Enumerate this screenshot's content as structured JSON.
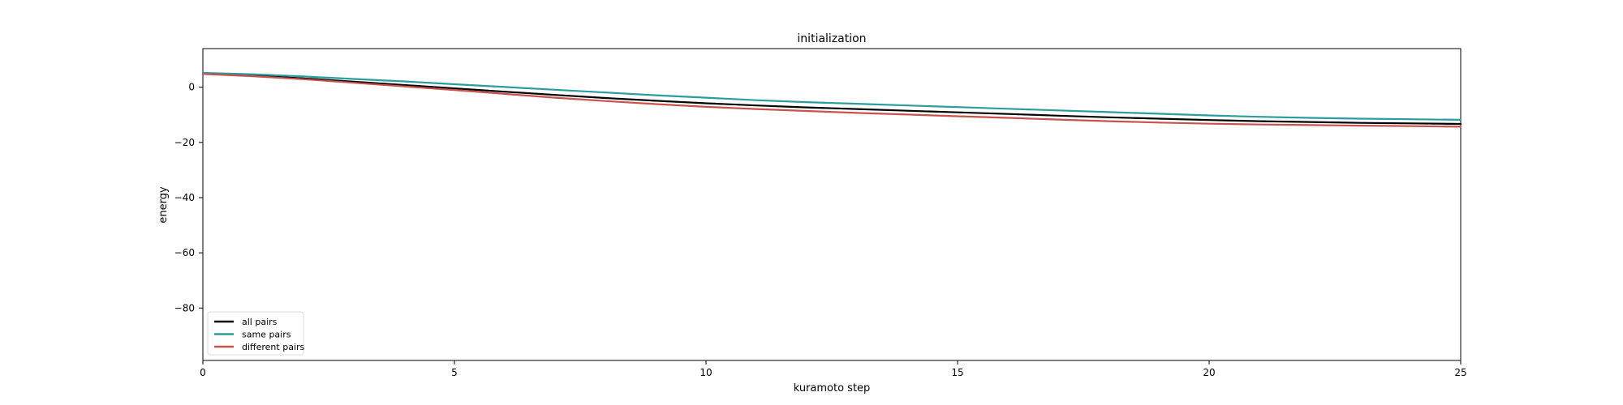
{
  "chart_data": {
    "type": "line",
    "title": "initialization",
    "xlabel": "kuramoto step",
    "ylabel": "energy",
    "xlim": [
      0,
      25
    ],
    "ylim": [
      -99,
      14
    ],
    "xticks": [
      0,
      5,
      10,
      15,
      20,
      25
    ],
    "yticks": [
      0,
      -20,
      -40,
      -60,
      -80
    ],
    "grid": false,
    "legend_position": "lower-left",
    "x": [
      0,
      1,
      2,
      3,
      4,
      5,
      6,
      7,
      8,
      9,
      10,
      11,
      12,
      13,
      14,
      15,
      16,
      17,
      18,
      19,
      20,
      21,
      22,
      23,
      24,
      25
    ],
    "series": [
      {
        "name": "all pairs",
        "color": "#000000",
        "values": [
          5.0,
          4.3,
          3.2,
          2.0,
          0.8,
          -0.4,
          -1.6,
          -2.8,
          -3.9,
          -4.9,
          -5.8,
          -6.6,
          -7.3,
          -7.9,
          -8.5,
          -9.1,
          -9.7,
          -10.3,
          -10.9,
          -11.4,
          -11.9,
          -12.3,
          -12.6,
          -12.9,
          -13.1,
          -13.3
        ]
      },
      {
        "name": "same pairs",
        "color": "#2a9d9c",
        "values": [
          5.2,
          4.7,
          3.9,
          3.0,
          2.1,
          1.1,
          0.1,
          -0.9,
          -1.9,
          -2.9,
          -3.8,
          -4.7,
          -5.4,
          -6.0,
          -6.6,
          -7.2,
          -7.8,
          -8.4,
          -9.0,
          -9.6,
          -10.2,
          -10.7,
          -11.1,
          -11.4,
          -11.6,
          -11.8
        ]
      },
      {
        "name": "different pairs",
        "color": "#c8524c",
        "values": [
          4.8,
          4.0,
          2.9,
          1.6,
          0.3,
          -1.0,
          -2.4,
          -3.8,
          -5.0,
          -6.1,
          -7.1,
          -7.9,
          -8.6,
          -9.3,
          -9.9,
          -10.5,
          -11.1,
          -11.7,
          -12.3,
          -12.8,
          -13.2,
          -13.5,
          -13.7,
          -13.9,
          -14.1,
          -14.3
        ]
      }
    ]
  }
}
